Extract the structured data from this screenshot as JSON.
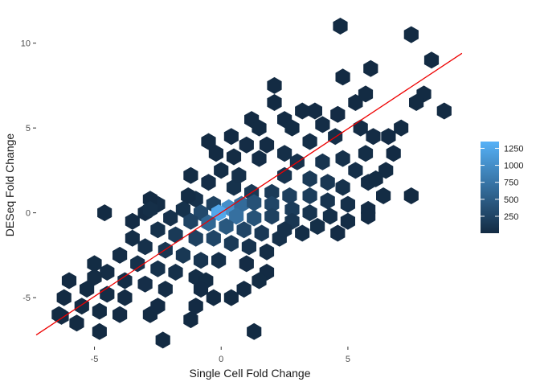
{
  "chart_data": {
    "type": "hexbin",
    "xlabel": "Single Cell Fold Change",
    "ylabel": "DESeq Fold Change",
    "xlim": [
      -7.3,
      9.6
    ],
    "ylim": [
      -7.6,
      11.5
    ],
    "x_ticks": [
      {
        "value": -5,
        "label": "-5"
      },
      {
        "value": 0,
        "label": "0"
      },
      {
        "value": 5,
        "label": "5"
      }
    ],
    "y_ticks": [
      {
        "value": -5,
        "label": "-5"
      },
      {
        "value": 0,
        "label": "0"
      },
      {
        "value": 5,
        "label": "5"
      },
      {
        "value": 10,
        "label": "10"
      }
    ],
    "grid": false,
    "legend": {
      "position": "right",
      "title": "",
      "breaks": [
        {
          "value": 250,
          "label": "250"
        },
        {
          "value": 500,
          "label": "500"
        },
        {
          "value": 750,
          "label": "750"
        },
        {
          "value": 1000,
          "label": "1000"
        },
        {
          "value": 1250,
          "label": "1250"
        }
      ],
      "range": [
        1,
        1350
      ],
      "low_color": "#132B43",
      "high_color": "#56B1F7"
    },
    "fit_line": {
      "color": "#ee0000",
      "x": [
        -7.3,
        9.5
      ],
      "y": [
        -7.2,
        9.4
      ]
    },
    "hex_counts": [
      {
        "x": 4.7,
        "y": 11.0,
        "count": 2
      },
      {
        "x": 7.5,
        "y": 10.5,
        "count": 3
      },
      {
        "x": 8.3,
        "y": 9.0,
        "count": 2
      },
      {
        "x": 5.9,
        "y": 8.5,
        "count": 2
      },
      {
        "x": 4.8,
        "y": 8.0,
        "count": 2
      },
      {
        "x": 2.1,
        "y": 7.5,
        "count": 3
      },
      {
        "x": 5.7,
        "y": 7.0,
        "count": 2
      },
      {
        "x": 5.3,
        "y": 6.5,
        "count": 3
      },
      {
        "x": 8.0,
        "y": 7.0,
        "count": 2
      },
      {
        "x": 7.7,
        "y": 6.5,
        "count": 3
      },
      {
        "x": 8.8,
        "y": 6.0,
        "count": 2
      },
      {
        "x": 2.1,
        "y": 6.5,
        "count": 4
      },
      {
        "x": 3.7,
        "y": 6.0,
        "count": 5
      },
      {
        "x": 4.6,
        "y": 5.8,
        "count": 5
      },
      {
        "x": 3.5,
        "y": 4.2,
        "count": 30
      },
      {
        "x": 2.5,
        "y": 5.5,
        "count": 6
      },
      {
        "x": 4.0,
        "y": 5.2,
        "count": 25
      },
      {
        "x": 4.5,
        "y": 4.5,
        "count": 40
      },
      {
        "x": 5.5,
        "y": 5.0,
        "count": 20
      },
      {
        "x": 6.0,
        "y": 4.5,
        "count": 15
      },
      {
        "x": 7.1,
        "y": 5.0,
        "count": 8
      },
      {
        "x": 6.6,
        "y": 4.5,
        "count": 6
      },
      {
        "x": 5.7,
        "y": 3.5,
        "count": 30
      },
      {
        "x": 1.0,
        "y": 4.0,
        "count": 15
      },
      {
        "x": 1.5,
        "y": 3.2,
        "count": 25
      },
      {
        "x": 2.5,
        "y": 3.5,
        "count": 40
      },
      {
        "x": 3.0,
        "y": 3.0,
        "count": 60
      },
      {
        "x": 4.0,
        "y": 3.0,
        "count": 90
      },
      {
        "x": 4.8,
        "y": 3.2,
        "count": 60
      },
      {
        "x": 5.3,
        "y": 2.5,
        "count": 45
      },
      {
        "x": 2.5,
        "y": 2.2,
        "count": 80
      },
      {
        "x": 3.5,
        "y": 2.0,
        "count": 150
      },
      {
        "x": 4.2,
        "y": 1.8,
        "count": 120
      },
      {
        "x": 4.8,
        "y": 1.5,
        "count": 70
      },
      {
        "x": 5.8,
        "y": 1.8,
        "count": 25
      },
      {
        "x": 6.5,
        "y": 2.5,
        "count": 10
      },
      {
        "x": 6.4,
        "y": 1.0,
        "count": 8
      },
      {
        "x": 7.5,
        "y": 1.0,
        "count": 2
      },
      {
        "x": 0.0,
        "y": 2.5,
        "count": 30
      },
      {
        "x": -0.5,
        "y": 1.8,
        "count": 35
      },
      {
        "x": 0.5,
        "y": 1.5,
        "count": 70
      },
      {
        "x": 1.2,
        "y": 1.2,
        "count": 130
      },
      {
        "x": 2.0,
        "y": 1.2,
        "count": 160
      },
      {
        "x": 2.7,
        "y": 1.0,
        "count": 200
      },
      {
        "x": 3.5,
        "y": 1.0,
        "count": 180
      },
      {
        "x": 4.2,
        "y": 0.7,
        "count": 100
      },
      {
        "x": 5.0,
        "y": 0.5,
        "count": 50
      },
      {
        "x": 5.8,
        "y": 0.2,
        "count": 15
      },
      {
        "x": -1.0,
        "y": 0.8,
        "count": 60
      },
      {
        "x": -0.3,
        "y": 0.5,
        "count": 220
      },
      {
        "x": 0.3,
        "y": 0.3,
        "count": 1000
      },
      {
        "x": 0.8,
        "y": 0.5,
        "count": 650
      },
      {
        "x": 1.3,
        "y": 0.6,
        "count": 380
      },
      {
        "x": 2.0,
        "y": 0.5,
        "count": 260
      },
      {
        "x": 2.8,
        "y": 0.2,
        "count": 170
      },
      {
        "x": 3.5,
        "y": 0.0,
        "count": 90
      },
      {
        "x": 4.3,
        "y": -0.2,
        "count": 50
      },
      {
        "x": 5.0,
        "y": -0.5,
        "count": 25
      },
      {
        "x": -1.5,
        "y": 0.2,
        "count": 70
      },
      {
        "x": -0.8,
        "y": 0.0,
        "count": 300
      },
      {
        "x": -0.1,
        "y": 0.0,
        "count": 1250
      },
      {
        "x": 0.6,
        "y": -0.2,
        "count": 700
      },
      {
        "x": 1.3,
        "y": -0.3,
        "count": 400
      },
      {
        "x": 2.0,
        "y": -0.2,
        "count": 220
      },
      {
        "x": 2.8,
        "y": -0.5,
        "count": 110
      },
      {
        "x": -2.5,
        "y": 0.5,
        "count": 25
      },
      {
        "x": -3.0,
        "y": 0.0,
        "count": 15
      },
      {
        "x": -2.0,
        "y": -0.3,
        "count": 60
      },
      {
        "x": -1.2,
        "y": -0.5,
        "count": 240
      },
      {
        "x": -0.5,
        "y": -0.6,
        "count": 600
      },
      {
        "x": 0.2,
        "y": -0.8,
        "count": 450
      },
      {
        "x": 0.9,
        "y": -1.0,
        "count": 260
      },
      {
        "x": 1.6,
        "y": -1.2,
        "count": 140
      },
      {
        "x": 2.3,
        "y": -1.5,
        "count": 60
      },
      {
        "x": -2.5,
        "y": -1.0,
        "count": 70
      },
      {
        "x": -1.8,
        "y": -1.3,
        "count": 150
      },
      {
        "x": -1.0,
        "y": -1.5,
        "count": 220
      },
      {
        "x": -0.3,
        "y": -1.5,
        "count": 260
      },
      {
        "x": 0.4,
        "y": -1.8,
        "count": 160
      },
      {
        "x": 1.1,
        "y": -2.0,
        "count": 80
      },
      {
        "x": 1.8,
        "y": -2.3,
        "count": 30
      },
      {
        "x": -3.5,
        "y": -1.5,
        "count": 30
      },
      {
        "x": -3.0,
        "y": -2.0,
        "count": 60
      },
      {
        "x": -2.2,
        "y": -2.2,
        "count": 110
      },
      {
        "x": -1.5,
        "y": -2.5,
        "count": 130
      },
      {
        "x": -0.8,
        "y": -2.8,
        "count": 100
      },
      {
        "x": -0.1,
        "y": -2.8,
        "count": 50
      },
      {
        "x": -4.0,
        "y": -2.5,
        "count": 25
      },
      {
        "x": -3.3,
        "y": -3.0,
        "count": 60
      },
      {
        "x": -2.5,
        "y": -3.3,
        "count": 70
      },
      {
        "x": -1.8,
        "y": -3.5,
        "count": 50
      },
      {
        "x": -1.0,
        "y": -3.8,
        "count": 25
      },
      {
        "x": -5.0,
        "y": -3.0,
        "count": 8
      },
      {
        "x": -4.5,
        "y": -3.5,
        "count": 20
      },
      {
        "x": -3.8,
        "y": -4.0,
        "count": 30
      },
      {
        "x": -3.0,
        "y": -4.2,
        "count": 35
      },
      {
        "x": -2.2,
        "y": -4.5,
        "count": 20
      },
      {
        "x": -5.3,
        "y": -4.5,
        "count": 10
      },
      {
        "x": -4.5,
        "y": -4.8,
        "count": 20
      },
      {
        "x": -3.8,
        "y": -5.0,
        "count": 15
      },
      {
        "x": -5.5,
        "y": -5.5,
        "count": 10
      },
      {
        "x": -4.8,
        "y": -5.8,
        "count": 8
      },
      {
        "x": -6.2,
        "y": -5.0,
        "count": 3
      },
      {
        "x": -6.4,
        "y": -6.0,
        "count": 4
      },
      {
        "x": -5.7,
        "y": -6.5,
        "count": 3
      },
      {
        "x": -4.8,
        "y": -7.0,
        "count": 2
      },
      {
        "x": -4.0,
        "y": -6.0,
        "count": 6
      },
      {
        "x": -2.8,
        "y": -6.0,
        "count": 4
      },
      {
        "x": -2.5,
        "y": -5.5,
        "count": 5
      },
      {
        "x": -1.2,
        "y": -6.3,
        "count": 3
      },
      {
        "x": -1.0,
        "y": -5.5,
        "count": 6
      },
      {
        "x": -2.3,
        "y": -7.5,
        "count": 2
      },
      {
        "x": -0.3,
        "y": -5.0,
        "count": 4
      },
      {
        "x": 0.4,
        "y": -5.0,
        "count": 3
      },
      {
        "x": 0.9,
        "y": -4.5,
        "count": 5
      },
      {
        "x": 1.8,
        "y": -3.5,
        "count": 5
      },
      {
        "x": 1.3,
        "y": -7.0,
        "count": 2
      },
      {
        "x": -0.6,
        "y": -4.0,
        "count": 8
      },
      {
        "x": -4.6,
        "y": 0.0,
        "count": 2
      },
      {
        "x": -2.8,
        "y": 0.8,
        "count": 4
      },
      {
        "x": -1.3,
        "y": 1.0,
        "count": 20
      },
      {
        "x": -0.2,
        "y": 3.5,
        "count": 4
      },
      {
        "x": -0.5,
        "y": 4.2,
        "count": 2
      },
      {
        "x": -1.2,
        "y": 2.2,
        "count": 8
      },
      {
        "x": 0.5,
        "y": 3.3,
        "count": 12
      },
      {
        "x": 1.2,
        "y": 5.5,
        "count": 3
      },
      {
        "x": 1.5,
        "y": 5.0,
        "count": 4
      },
      {
        "x": 2.8,
        "y": 5.0,
        "count": 8
      },
      {
        "x": 3.2,
        "y": 6.0,
        "count": 3
      },
      {
        "x": 1.8,
        "y": 4.0,
        "count": 15
      },
      {
        "x": 0.7,
        "y": 2.2,
        "count": 60
      },
      {
        "x": 3.8,
        "y": -0.8,
        "count": 40
      },
      {
        "x": 4.6,
        "y": -1.2,
        "count": 15
      },
      {
        "x": 5.8,
        "y": -0.2,
        "count": 6
      },
      {
        "x": 6.1,
        "y": 2.0,
        "count": 10
      },
      {
        "x": 6.8,
        "y": 3.5,
        "count": 5
      },
      {
        "x": 3.2,
        "y": -1.2,
        "count": 30
      },
      {
        "x": 2.5,
        "y": -1.0,
        "count": 60
      },
      {
        "x": -0.8,
        "y": -4.5,
        "count": 6
      },
      {
        "x": 1.0,
        "y": -3.0,
        "count": 15
      },
      {
        "x": -5.0,
        "y": -3.8,
        "count": 12
      },
      {
        "x": -6.0,
        "y": -4.0,
        "count": 3
      },
      {
        "x": -6.3,
        "y": -6.1,
        "count": 2
      },
      {
        "x": -2.8,
        "y": 0.2,
        "count": 40
      },
      {
        "x": -3.5,
        "y": -0.5,
        "count": 15
      },
      {
        "x": 1.5,
        "y": -4.0,
        "count": 8
      },
      {
        "x": 0.4,
        "y": 4.5,
        "count": 6
      }
    ]
  }
}
